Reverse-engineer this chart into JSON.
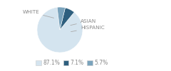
{
  "slices": [
    87.1,
    7.1,
    5.7
  ],
  "labels": [
    "WHITE",
    "ASIAN",
    "HISPANIC"
  ],
  "colors": [
    "#d4e4ef",
    "#2e5f7e",
    "#7aa3bc"
  ],
  "legend_labels": [
    "87.1%",
    "7.1%",
    "5.7%"
  ],
  "startangle": 97,
  "background_color": "#ffffff",
  "label_fontsize": 5.2,
  "legend_fontsize": 5.5,
  "text_color": "#888888"
}
